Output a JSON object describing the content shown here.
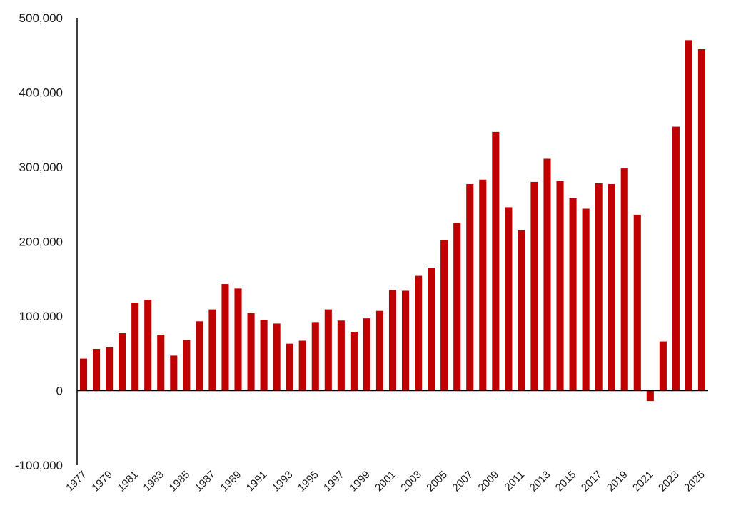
{
  "chart_data": {
    "type": "bar",
    "title": "",
    "xlabel": "",
    "ylabel": "",
    "ylim": [
      -100000,
      500000
    ],
    "y_ticks": [
      500000,
      400000,
      300000,
      200000,
      100000,
      0,
      -100000
    ],
    "y_tick_labels": [
      "500,000",
      "400,000",
      "300,000",
      "200,000",
      "100,000",
      "0",
      "-100,000"
    ],
    "grid": false,
    "bar_color": "#c00000",
    "categories": [
      "1977",
      "1978",
      "1979",
      "1980",
      "1981",
      "1982",
      "1983",
      "1984",
      "1985",
      "1986",
      "1987",
      "1988",
      "1989",
      "1990",
      "1991",
      "1992",
      "1993",
      "1994",
      "1995",
      "1996",
      "1997",
      "1998",
      "1999",
      "2000",
      "2001",
      "2002",
      "2003",
      "2004",
      "2005",
      "2006",
      "2007",
      "2008",
      "2009",
      "2010",
      "2011",
      "2012",
      "2013",
      "2014",
      "2015",
      "2016",
      "2017",
      "2018",
      "2019",
      "2020",
      "2021",
      "2022",
      "2023",
      "2024",
      "2025"
    ],
    "shown_x_labels": [
      "1977",
      "1979",
      "1981",
      "1983",
      "1985",
      "1987",
      "1989",
      "1991",
      "1993",
      "1995",
      "1997",
      "1999",
      "2001",
      "2003",
      "2005",
      "2007",
      "2009",
      "2011",
      "2013",
      "2015",
      "2017",
      "2019",
      "2021",
      "2023",
      "2025"
    ],
    "values": [
      43000,
      56000,
      58000,
      77000,
      118000,
      122000,
      75000,
      47000,
      68000,
      93000,
      109000,
      143000,
      137000,
      104000,
      95000,
      90000,
      63000,
      67000,
      92000,
      109000,
      94000,
      79000,
      97000,
      107000,
      135000,
      134000,
      154000,
      165000,
      202000,
      225000,
      277000,
      283000,
      347000,
      246000,
      215000,
      280000,
      311000,
      281000,
      258000,
      244000,
      278000,
      277000,
      298000,
      236000,
      -14000,
      66000,
      354000,
      470000,
      458000
    ]
  }
}
